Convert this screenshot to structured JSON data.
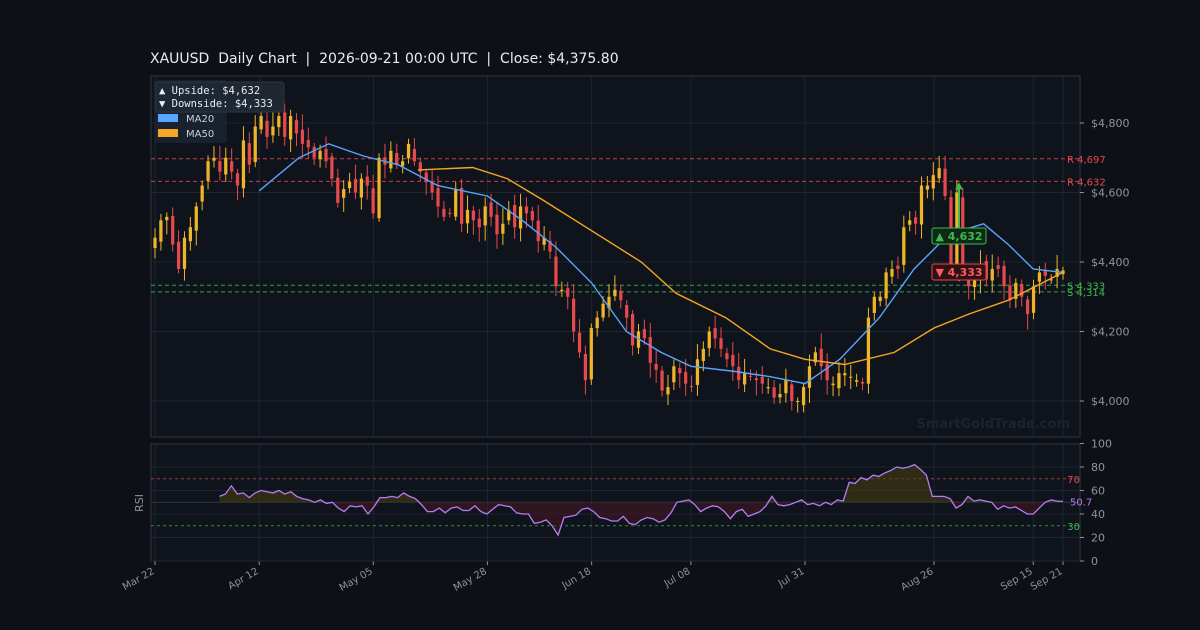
{
  "header": {
    "symbol": "XAUUSD",
    "chart_kind": "Daily Chart",
    "timestamp": "2026-09-21 00:00 UTC",
    "close_label": "Close: $4,375.80"
  },
  "legend": {
    "upside": "▲ Upside:   $4,632",
    "downside": "▼ Downside: $4,333",
    "ma20_label": "MA20",
    "ma50_label": "MA50"
  },
  "watermark": "SmartGoldTrade.com",
  "colors": {
    "background": "#0d1117",
    "panel": "#0f141c",
    "bull": "#f0b429",
    "bear": "#e5484d",
    "ma20": "#58a6ff",
    "ma50": "#f5a623",
    "resistance": "#e5484d",
    "support": "#3fb950",
    "rsi": "#b67cf5",
    "grid": "#1e2530"
  },
  "chart_data": [
    {
      "type": "candlestick",
      "title": "XAUUSD  Daily Chart  |  2026-09-21 00:00 UTC  |  Close: $4,375.80",
      "x_start": "2026-03-22",
      "x_end": "2026-09-21",
      "xticks": [
        "Mar 22",
        "Apr 12",
        "May 05",
        "May 28",
        "Jun 18",
        "Jul 08",
        "Jul 31",
        "Aug 26",
        "Sep 15",
        "Sep 21"
      ],
      "ylim": [
        3900,
        4950
      ],
      "yticks": [
        4000,
        4200,
        4400,
        4600,
        4800
      ],
      "ytick_labels": [
        "$4,000",
        "$4,200",
        "$4,400",
        "$4,600",
        "$4,800"
      ],
      "close_series": [
        4470,
        4520,
        4530,
        4450,
        4380,
        4470,
        4500,
        4560,
        4620,
        4690,
        4700,
        4660,
        4700,
        4660,
        4620,
        4750,
        4680,
        4790,
        4820,
        4760,
        4790,
        4820,
        4760,
        4820,
        4770,
        4740,
        4730,
        4700,
        4720,
        4690,
        4640,
        4570,
        4610,
        4630,
        4600,
        4640,
        4620,
        4540,
        4700,
        4680,
        4720,
        4680,
        4690,
        4740,
        4690,
        4660,
        4630,
        4600,
        4560,
        4530,
        4540,
        4610,
        4510,
        4550,
        4520,
        4500,
        4560,
        4530,
        4480,
        4510,
        4550,
        4500,
        4560,
        4540,
        4520,
        4460,
        4470,
        4430,
        4330,
        4320,
        4300,
        4200,
        4140,
        4060,
        4210,
        4240,
        4280,
        4300,
        4320,
        4290,
        4240,
        4160,
        4200,
        4180,
        4110,
        4090,
        4030,
        4040,
        4100,
        4080,
        4050,
        4040,
        4120,
        4150,
        4200,
        4180,
        4150,
        4120,
        4100,
        4060,
        4080,
        4070,
        4060,
        4050,
        4040,
        4010,
        4020,
        4060,
        4000,
        4000,
        4040,
        4100,
        4140,
        4100,
        4060,
        4050,
        4080,
        4080,
        4070,
        4060,
        4050,
        4240,
        4300,
        4300,
        4370,
        4380,
        4380,
        4500,
        4520,
        4510,
        4620,
        4620,
        4650,
        4670,
        4590,
        4380,
        4600,
        4380,
        4330,
        4360,
        4390,
        4350,
        4380,
        4380,
        4330,
        4290,
        4340,
        4300,
        4250,
        4330,
        4370,
        4360,
        4350,
        4380,
        4375.8
      ],
      "ma20": [
        {
          "date": "2026-04-12",
          "value": 4605
        },
        {
          "date": "2026-04-20",
          "value": 4700
        },
        {
          "date": "2026-04-26",
          "value": 4740
        },
        {
          "date": "2026-05-03",
          "value": 4705
        },
        {
          "date": "2026-05-10",
          "value": 4680
        },
        {
          "date": "2026-05-18",
          "value": 4620
        },
        {
          "date": "2026-05-28",
          "value": 4590
        },
        {
          "date": "2026-06-04",
          "value": 4520
        },
        {
          "date": "2026-06-11",
          "value": 4440
        },
        {
          "date": "2026-06-18",
          "value": 4340
        },
        {
          "date": "2026-06-25",
          "value": 4200
        },
        {
          "date": "2026-07-02",
          "value": 4140
        },
        {
          "date": "2026-07-08",
          "value": 4100
        },
        {
          "date": "2026-07-17",
          "value": 4085
        },
        {
          "date": "2026-07-24",
          "value": 4070
        },
        {
          "date": "2026-07-31",
          "value": 4050
        },
        {
          "date": "2026-08-07",
          "value": 4120
        },
        {
          "date": "2026-08-15",
          "value": 4240
        },
        {
          "date": "2026-08-22",
          "value": 4380
        },
        {
          "date": "2026-08-29",
          "value": 4480
        },
        {
          "date": "2026-09-05",
          "value": 4510
        },
        {
          "date": "2026-09-10",
          "value": 4450
        },
        {
          "date": "2026-09-15",
          "value": 4380
        },
        {
          "date": "2026-09-21",
          "value": 4370
        }
      ],
      "ma50": [
        {
          "date": "2026-05-14",
          "value": 4665
        },
        {
          "date": "2026-05-25",
          "value": 4672
        },
        {
          "date": "2026-06-01",
          "value": 4640
        },
        {
          "date": "2026-06-08",
          "value": 4580
        },
        {
          "date": "2026-06-18",
          "value": 4490
        },
        {
          "date": "2026-06-28",
          "value": 4400
        },
        {
          "date": "2026-07-05",
          "value": 4310
        },
        {
          "date": "2026-07-15",
          "value": 4240
        },
        {
          "date": "2026-07-24",
          "value": 4150
        },
        {
          "date": "2026-07-31",
          "value": 4120
        },
        {
          "date": "2026-08-08",
          "value": 4105
        },
        {
          "date": "2026-08-18",
          "value": 4140
        },
        {
          "date": "2026-08-26",
          "value": 4210
        },
        {
          "date": "2026-09-02",
          "value": 4250
        },
        {
          "date": "2026-09-10",
          "value": 4290
        },
        {
          "date": "2026-09-21",
          "value": 4370
        }
      ],
      "levels": [
        {
          "label": "R 4,697",
          "value": 4697,
          "kind": "resistance"
        },
        {
          "label": "R 4,632",
          "value": 4632,
          "kind": "resistance"
        },
        {
          "label": "S 4,333",
          "value": 4333,
          "kind": "support"
        },
        {
          "label": "S 4,314",
          "value": 4314,
          "kind": "support"
        }
      ],
      "targets": [
        {
          "label": "▲ 4,632",
          "value": 4632,
          "kind": "up"
        },
        {
          "label": "▼ 4,333",
          "value": 4333,
          "kind": "down"
        }
      ],
      "legend": [
        "MA20",
        "MA50"
      ],
      "legend_position": "top-left",
      "grid": true
    },
    {
      "type": "line",
      "ylabel": "RSI",
      "ylim": [
        0,
        100
      ],
      "yticks": [
        0,
        20,
        40,
        60,
        80,
        100
      ],
      "overbought": 70,
      "oversold": 30,
      "overbought_label": "70",
      "oversold_label": "30",
      "mid": 50,
      "last_label": "50.7",
      "rsi_start": "2026-04-04",
      "values": [
        55,
        57,
        64,
        57,
        58,
        54,
        58,
        60,
        59,
        58,
        60,
        57,
        59,
        55,
        53,
        52,
        50,
        52,
        49,
        50,
        45,
        42,
        47,
        46,
        47,
        40,
        46,
        54,
        54,
        55,
        54,
        58,
        55,
        53,
        48,
        42,
        42,
        45,
        41,
        45,
        46,
        43,
        43,
        47,
        42,
        40,
        44,
        48,
        47,
        46,
        41,
        40,
        40,
        32,
        33,
        35,
        30,
        22,
        37,
        38,
        39,
        44,
        45,
        42,
        37,
        36,
        34,
        34,
        38,
        32,
        31,
        35,
        37,
        36,
        33,
        35,
        41,
        50,
        51,
        52,
        48,
        42,
        45,
        47,
        46,
        42,
        36,
        42,
        44,
        38,
        40,
        42,
        47,
        55,
        48,
        47,
        48,
        50,
        52,
        48,
        49,
        47,
        50,
        48,
        52,
        51,
        67,
        66,
        71,
        69,
        73,
        72,
        75,
        77,
        80,
        79,
        80,
        82,
        78,
        73,
        55,
        55,
        55,
        53,
        45,
        48,
        55,
        51,
        52,
        51,
        50,
        44,
        47,
        45,
        46,
        43,
        40,
        40,
        45,
        50,
        52,
        51,
        50.7
      ]
    }
  ]
}
